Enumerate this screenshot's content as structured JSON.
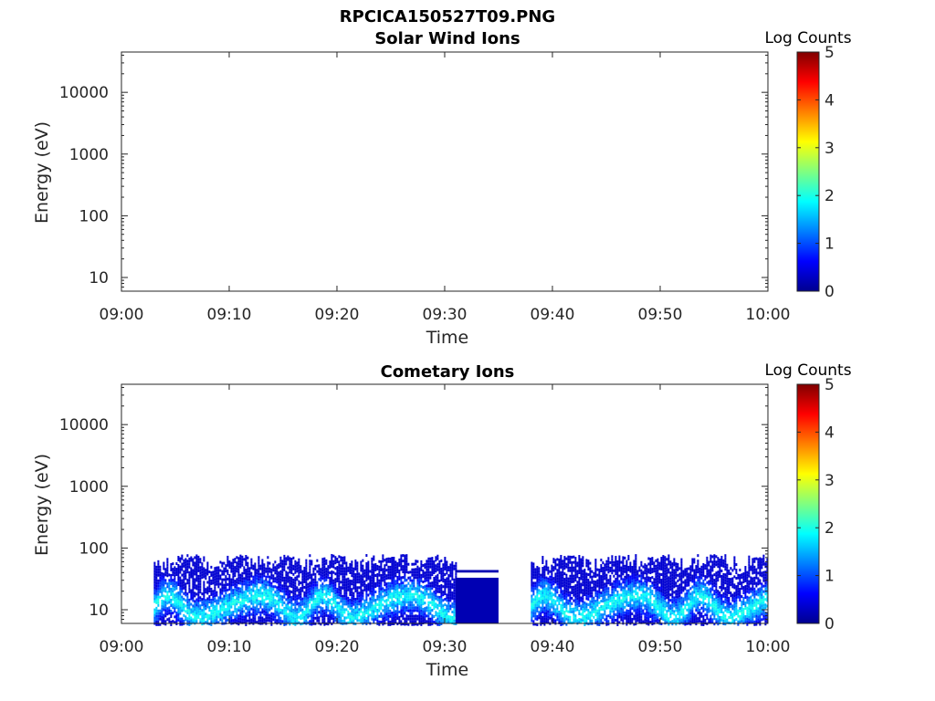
{
  "figure": {
    "title": "RPCICA150527T09.PNG"
  },
  "chart_data": [
    {
      "type": "heatmap",
      "title": "Solar Wind Ions",
      "xlabel": "Time",
      "ylabel": "Energy (eV)",
      "x_ticks": [
        "09:00",
        "09:10",
        "09:20",
        "09:30",
        "09:40",
        "09:50",
        "10:00"
      ],
      "xlim": [
        "09:00",
        "10:00"
      ],
      "y_scale": "log",
      "y_ticks": [
        "10",
        "100",
        "1000",
        "10000"
      ],
      "ylim": [
        6,
        45000
      ],
      "colorbar": {
        "label": "Log Counts",
        "ticks": [
          "0",
          "1",
          "2",
          "3",
          "4",
          "5"
        ],
        "range": [
          0,
          5
        ],
        "colormap": "jet"
      },
      "segments": []
    },
    {
      "type": "heatmap",
      "title": "Cometary Ions",
      "xlabel": "Time",
      "ylabel": "Energy (eV)",
      "x_ticks": [
        "09:00",
        "09:10",
        "09:20",
        "09:30",
        "09:40",
        "09:50",
        "10:00"
      ],
      "xlim": [
        "09:00",
        "10:00"
      ],
      "y_scale": "log",
      "y_ticks": [
        "10",
        "100",
        "1000",
        "10000"
      ],
      "ylim": [
        6,
        45000
      ],
      "colorbar": {
        "label": "Log Counts",
        "ticks": [
          "0",
          "1",
          "2",
          "3",
          "4",
          "5"
        ],
        "range": [
          0,
          5
        ],
        "colormap": "jet"
      },
      "segments": [
        {
          "start": "09:03",
          "end": "09:31",
          "e_min": 6,
          "e_max": 80,
          "log_counts": [
            0.4,
            2.0
          ],
          "pattern": "variable"
        },
        {
          "start": "09:31",
          "end": "09:35",
          "e_min": 6,
          "e_max": 33,
          "log_counts": [
            0.2,
            0.3
          ],
          "pattern": "uniform"
        },
        {
          "start": "09:31",
          "end": "09:35",
          "e_min": 40,
          "e_max": 44,
          "log_counts": [
            0.2,
            0.3
          ],
          "pattern": "band"
        },
        {
          "start": "09:38",
          "end": "10:00",
          "e_min": 6,
          "e_max": 80,
          "log_counts": [
            0.4,
            2.0
          ],
          "pattern": "variable"
        }
      ]
    }
  ]
}
